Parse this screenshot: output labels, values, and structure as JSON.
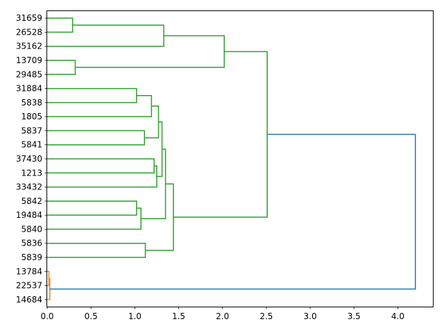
{
  "chart_data": {
    "type": "dendrogram",
    "orientation": "horizontal",
    "xlim": [
      0.0,
      4.4
    ],
    "x_ticks": [
      "0.0",
      "0.5",
      "1.0",
      "1.5",
      "2.0",
      "2.5",
      "3.0",
      "3.5",
      "4.0"
    ],
    "leaves": [
      "31659",
      "26528",
      "35162",
      "13709",
      "29485",
      "31884",
      "5838",
      "1805",
      "5837",
      "5841",
      "37430",
      "1213",
      "33432",
      "5842",
      "19484",
      "5840",
      "5836",
      "5839",
      "13784",
      "22537",
      "14684"
    ],
    "colors": {
      "green": "#2ca02c",
      "orange": "#ff7f0e",
      "blue": "#1f77b4",
      "axis": "#000000"
    },
    "links": [
      {
        "a": 0,
        "b": 1,
        "height": 0.29,
        "color": "green"
      },
      {
        "a": "L0",
        "b": 2,
        "height": 1.33,
        "color": "green"
      },
      {
        "a": 3,
        "b": 4,
        "height": 0.32,
        "color": "green"
      },
      {
        "a": "L1",
        "b": "L2",
        "height": 2.02,
        "color": "green"
      },
      {
        "a": 5,
        "b": 6,
        "height": 1.02,
        "color": "green"
      },
      {
        "a": "L4",
        "b": 7,
        "height": 1.19,
        "color": "green"
      },
      {
        "a": 8,
        "b": 9,
        "height": 1.11,
        "color": "green"
      },
      {
        "a": "L5",
        "b": "L6",
        "height": 1.27,
        "color": "green"
      },
      {
        "a": 10,
        "b": 11,
        "height": 1.22,
        "color": "green"
      },
      {
        "a": "L8",
        "b": 12,
        "height": 1.25,
        "color": "green"
      },
      {
        "a": "L7",
        "b": "L9",
        "height": 1.31,
        "color": "green"
      },
      {
        "a": 13,
        "b": 14,
        "height": 1.02,
        "color": "green"
      },
      {
        "a": "L11",
        "b": 15,
        "height": 1.07,
        "color": "green"
      },
      {
        "a": "L10",
        "b": "L12",
        "height": 1.35,
        "color": "green"
      },
      {
        "a": 16,
        "b": 17,
        "height": 1.12,
        "color": "green"
      },
      {
        "a": "L13",
        "b": "L14",
        "height": 1.44,
        "color": "green"
      },
      {
        "a": "L3",
        "b": "L15",
        "height": 2.51,
        "color": "green"
      },
      {
        "a": 18,
        "b": 19,
        "height": 0.02,
        "color": "orange"
      },
      {
        "a": "L17",
        "b": 20,
        "height": 0.03,
        "color": "orange"
      },
      {
        "a": "L16",
        "b": "L18",
        "height": 4.2,
        "color": "blue"
      }
    ]
  }
}
